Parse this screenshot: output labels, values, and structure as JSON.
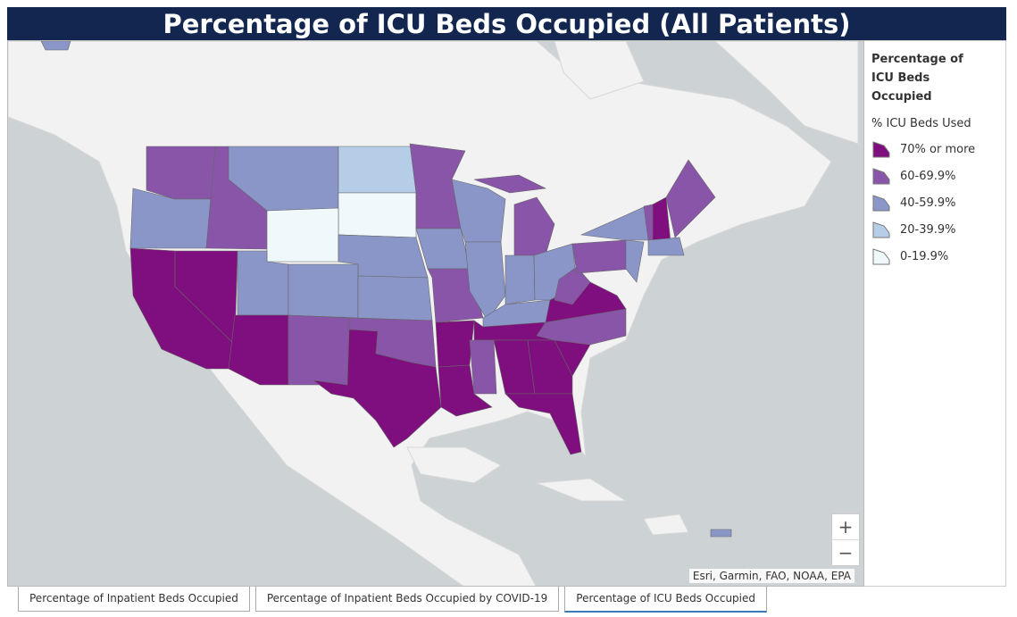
{
  "header": {
    "title": "Percentage of ICU Beds Occupied (All Patients)"
  },
  "legend": {
    "title": "Percentage of ICU Beds Occupied",
    "subtitle": "% ICU Beds Used",
    "items": [
      {
        "label": "70% or more",
        "color": "#7f0f7e"
      },
      {
        "label": "60-69.9%",
        "color": "#8955a8"
      },
      {
        "label": "40-59.9%",
        "color": "#8a96c8"
      },
      {
        "label": "20-39.9%",
        "color": "#b5cde6"
      },
      {
        "label": "0-19.9%",
        "color": "#eff8fa"
      }
    ]
  },
  "map": {
    "attribution": "Esri, Garmin, FAO, NOAA, EPA",
    "zoom_in": "+",
    "zoom_out": "−"
  },
  "tabs": [
    "Percentage of Inpatient Beds Occupied",
    "Percentage of Inpatient Beds Occupied by COVID-19",
    "Percentage of ICU Beds Occupied"
  ],
  "active_tab": 2
}
